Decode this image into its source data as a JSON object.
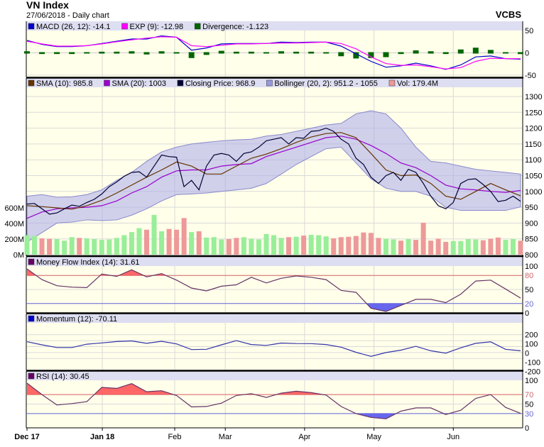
{
  "header": {
    "title": "VN Index",
    "subtitle": "27/06/2018 - Daily chart",
    "brand": "VCBS"
  },
  "chart_data": [
    {
      "id": "macd",
      "type": "line",
      "legend": [
        {
          "label": "MACD (26, 12): -14.1",
          "color": "#0000cc"
        },
        {
          "label": "EXP (9): -12.98",
          "color": "#ff00ff"
        },
        {
          "label": "Divergence: -1.123",
          "color": "#006600"
        }
      ],
      "y_ticks": [
        "50",
        "0",
        "-50"
      ],
      "y_tick_values": [
        50,
        0,
        -50
      ],
      "series": [
        {
          "name": "MACD (26, 12)",
          "color": "#0000cc",
          "values": [
            28,
            19,
            14,
            14,
            16,
            21,
            26,
            31,
            31,
            38,
            35,
            6,
            11,
            20,
            21,
            21,
            21,
            24,
            23,
            24,
            24,
            15,
            -2,
            -19,
            -32,
            -29,
            -23,
            -29,
            -37,
            -27,
            -9,
            -7,
            -13,
            -14.1
          ]
        },
        {
          "name": "EXP (9)",
          "color": "#ff00ff",
          "values": [
            26,
            20,
            15,
            15,
            16,
            20,
            25,
            29,
            33,
            36,
            35,
            16,
            14,
            17,
            20,
            20,
            21,
            22,
            22,
            23,
            24,
            21,
            9,
            -9,
            -24,
            -28,
            -27,
            -31,
            -36,
            -33,
            -19,
            -12,
            -13,
            -12.98
          ]
        },
        {
          "name": "Divergence",
          "type": "bar",
          "color": "#006600",
          "values": [
            2,
            -1,
            -1,
            -1,
            0,
            1,
            1,
            2,
            -2,
            2,
            0,
            -10,
            -3,
            3,
            1,
            1,
            0,
            2,
            1,
            1,
            0,
            -6,
            -11,
            -10,
            -8,
            -1,
            4,
            2,
            -1,
            6,
            10,
            5,
            0,
            -1.123
          ]
        }
      ]
    },
    {
      "id": "price",
      "type": "line",
      "legend": [
        {
          "label": "SMA (10): 985.8",
          "color": "#663300"
        },
        {
          "label": "SMA (20): 1003",
          "color": "#9900cc"
        },
        {
          "label": "Closing Price: 968.9",
          "color": "#000033"
        },
        {
          "label": "Bollinger (20, 2): 951.2 - 1055",
          "color": "#9999dd"
        },
        {
          "label": "Vol: 179.4M",
          "color": "#ee9999"
        }
      ],
      "y_ticks": [
        "1300",
        "1250",
        "1200",
        "1150",
        "1100",
        "1050",
        "1000",
        "950",
        "900",
        "850",
        "800"
      ],
      "y_tick_values": [
        1300,
        1250,
        1200,
        1150,
        1100,
        1050,
        1000,
        950,
        900,
        850,
        800
      ],
      "vol_ticks": [
        "600M",
        "400M",
        "200M",
        "0M"
      ],
      "vol_tick_values": [
        600,
        400,
        200,
        0
      ],
      "vol_up_color": "#99ee99",
      "vol_down_color": "#ee9999",
      "band_color": "#b0b0ea",
      "closing_price": [
        960,
        962,
        945,
        928,
        932,
        945,
        957,
        953,
        965,
        975,
        992,
        1015,
        1030,
        1048,
        1060,
        1062,
        1045,
        1080,
        1115,
        1110,
        1108,
        1015,
        1035,
        1005,
        1080,
        1115,
        1120,
        1115,
        1095,
        1120,
        1125,
        1140,
        1160,
        1165,
        1170,
        1150,
        1170,
        1168,
        1190,
        1192,
        1200,
        1190,
        1165,
        1150,
        1105,
        1085,
        1045,
        1025,
        1050,
        1060,
        1035,
        1070,
        1060,
        1025,
        985,
        955,
        945,
        965,
        1025,
        1038,
        1040,
        1022,
        1000,
        968,
        972,
        985,
        968.9
      ],
      "volume_millions": [
        250,
        240,
        210,
        205,
        200,
        180,
        225,
        215,
        210,
        200,
        190,
        195,
        215,
        250,
        290,
        340,
        320,
        510,
        300,
        330,
        320,
        470,
        290,
        300,
        220,
        225,
        195,
        200,
        215,
        225,
        205,
        195,
        265,
        250,
        215,
        225,
        230,
        245,
        255,
        250,
        235,
        210,
        225,
        230,
        240,
        285,
        280,
        215,
        205,
        195,
        180,
        200,
        190,
        410,
        180,
        205,
        165,
        175,
        175,
        200,
        195,
        185,
        205,
        220,
        190,
        200,
        179.4
      ],
      "sma10": [
        955,
        952,
        948,
        944,
        955,
        972,
        995,
        1020,
        1045,
        1068,
        1093,
        1080,
        1055,
        1055,
        1080,
        1105,
        1118,
        1135,
        1155,
        1172,
        1183,
        1186,
        1170,
        1120,
        1068,
        1050,
        1052,
        1025,
        985,
        975,
        1000,
        1025,
        1005,
        985.8
      ],
      "sma20": [
        915,
        935,
        945,
        948,
        950,
        955,
        970,
        995,
        1015,
        1045,
        1065,
        1068,
        1068,
        1080,
        1085,
        1088,
        1110,
        1125,
        1140,
        1155,
        1170,
        1175,
        1165,
        1145,
        1120,
        1090,
        1075,
        1050,
        1020,
        1008,
        1005,
        1000,
        997,
        1003
      ],
      "bollinger_upper": [
        985,
        990,
        982,
        983,
        990,
        1005,
        1035,
        1060,
        1095,
        1125,
        1140,
        1150,
        1155,
        1160,
        1163,
        1165,
        1175,
        1180,
        1190,
        1200,
        1210,
        1215,
        1245,
        1255,
        1245,
        1200,
        1140,
        1095,
        1090,
        1080,
        1070,
        1065,
        1060,
        1055
      ],
      "bollinger_lower": [
        840,
        870,
        900,
        903,
        910,
        908,
        910,
        925,
        945,
        970,
        990,
        992,
        995,
        1000,
        1005,
        1010,
        1025,
        1055,
        1085,
        1110,
        1135,
        1140,
        1090,
        1040,
        1010,
        1000,
        1000,
        985,
        950,
        940,
        940,
        940,
        940,
        951.2
      ]
    },
    {
      "id": "mfi",
      "type": "line",
      "legend": [
        {
          "label": "Money Flow Index (14): 31.61",
          "color": "#660066"
        }
      ],
      "y_ticks": [
        "100",
        "80",
        "50",
        "20",
        "0"
      ],
      "y_tick_values": [
        100,
        80,
        50,
        20,
        0
      ],
      "upper": 80,
      "lower": 20,
      "upper_color": "#ff6666",
      "lower_color": "#6666ee",
      "series": [
        {
          "name": "Money Flow Index (14)",
          "color": "#663366",
          "values": [
            94,
            71,
            58,
            55,
            54,
            83,
            78,
            92,
            77,
            84,
            70,
            53,
            47,
            57,
            60,
            76,
            64,
            74,
            79,
            76,
            71,
            48,
            44,
            10,
            3,
            16,
            29,
            29,
            22,
            40,
            68,
            70,
            51,
            31.61
          ]
        }
      ]
    },
    {
      "id": "momentum",
      "type": "line",
      "legend": [
        {
          "label": "Momentum (12): -70.11",
          "color": "#0000cc"
        }
      ],
      "y_ticks": [
        "200",
        "100",
        "0",
        "-100",
        "-200"
      ],
      "y_tick_values": [
        200,
        100,
        0,
        -100,
        -200
      ],
      "series": [
        {
          "name": "Momentum (12)",
          "color": "#3333aa",
          "values": [
            82,
            30,
            -15,
            -15,
            40,
            62,
            85,
            96,
            55,
            90,
            45,
            -50,
            -45,
            30,
            100,
            35,
            20,
            60,
            51,
            50,
            35,
            -10,
            -95,
            -164,
            -100,
            -60,
            5,
            -70,
            -110,
            -20,
            55,
            80,
            -45,
            -70.11
          ]
        }
      ]
    },
    {
      "id": "rsi",
      "type": "line",
      "legend": [
        {
          "label": "RSI (14): 30.45",
          "color": "#660066"
        }
      ],
      "y_ticks": [
        "100",
        "70",
        "50",
        "30",
        "0"
      ],
      "y_tick_values": [
        100,
        70,
        50,
        30,
        0
      ],
      "upper": 70,
      "lower": 30,
      "upper_color": "#ff6666",
      "lower_color": "#6666ee",
      "series": [
        {
          "name": "RSI (14)",
          "color": "#663366",
          "values": [
            94,
            70,
            48,
            51,
            55,
            85,
            83,
            93,
            76,
            78,
            68,
            44,
            45,
            52,
            68,
            72,
            64,
            73,
            77,
            74,
            69,
            45,
            30,
            22,
            19,
            35,
            42,
            42,
            28,
            37,
            62,
            70,
            43,
            30.45
          ]
        }
      ]
    }
  ],
  "x_axis": {
    "ticks": [
      "Dec 17",
      "Jan 18",
      "Feb",
      "Mar",
      "Apr",
      "May",
      "Jun"
    ],
    "bold": [
      true,
      true,
      false,
      false,
      false,
      false,
      false
    ]
  }
}
